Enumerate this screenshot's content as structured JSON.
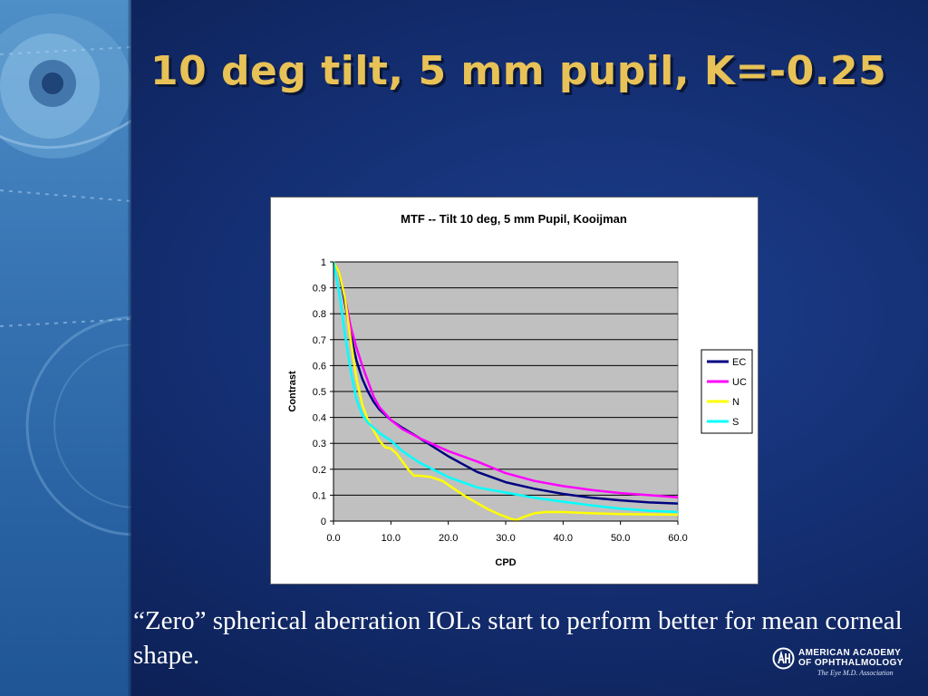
{
  "slide": {
    "title": "10 deg tilt, 5 mm pupil, K=-0.25",
    "caption": "“Zero” spherical aberration IOLs start to perform better for mean corneal shape.",
    "logo": {
      "line1": "AMERICAN ACADEMY",
      "line2": "OF OPHTHALMOLOGY",
      "tagline": "The Eye M.D. Association"
    },
    "colors": {
      "title": "#e8c257",
      "background": "#142f73",
      "side_strip": "#3a77b6"
    }
  },
  "chart_data": {
    "type": "line",
    "title": "MTF -- Tilt 10 deg, 5 mm Pupil, Kooijman",
    "xlabel": "CPD",
    "ylabel": "Contrast",
    "xlim": [
      0,
      60
    ],
    "ylim": [
      0,
      1
    ],
    "x_ticks": [
      "0.0",
      "10.0",
      "20.0",
      "30.0",
      "40.0",
      "50.0",
      "60.0"
    ],
    "y_ticks": [
      "0",
      "0.1",
      "0.2",
      "0.3",
      "0.4",
      "0.5",
      "0.6",
      "0.7",
      "0.8",
      "0.9",
      "1"
    ],
    "grid": "horizontal",
    "plot_background": "#c0c0c0",
    "legend_position": "right",
    "series": [
      {
        "name": "EC",
        "color": "#000080",
        "points": [
          [
            0,
            1
          ],
          [
            1,
            0.96
          ],
          [
            2,
            0.84
          ],
          [
            3,
            0.72
          ],
          [
            4,
            0.62
          ],
          [
            5,
            0.55
          ],
          [
            6,
            0.5
          ],
          [
            7,
            0.46
          ],
          [
            8,
            0.43
          ],
          [
            10,
            0.39
          ],
          [
            12,
            0.36
          ],
          [
            15,
            0.32
          ],
          [
            20,
            0.25
          ],
          [
            25,
            0.19
          ],
          [
            30,
            0.15
          ],
          [
            35,
            0.125
          ],
          [
            40,
            0.105
          ],
          [
            45,
            0.09
          ],
          [
            50,
            0.08
          ],
          [
            55,
            0.072
          ],
          [
            60,
            0.068
          ]
        ]
      },
      {
        "name": "UC",
        "color": "#ff00ff",
        "points": [
          [
            0,
            1
          ],
          [
            1,
            0.96
          ],
          [
            2,
            0.86
          ],
          [
            3,
            0.75
          ],
          [
            4,
            0.67
          ],
          [
            5,
            0.6
          ],
          [
            6,
            0.54
          ],
          [
            7,
            0.48
          ],
          [
            8,
            0.44
          ],
          [
            10,
            0.39
          ],
          [
            12,
            0.355
          ],
          [
            15,
            0.32
          ],
          [
            20,
            0.27
          ],
          [
            25,
            0.23
          ],
          [
            30,
            0.185
          ],
          [
            35,
            0.155
          ],
          [
            40,
            0.135
          ],
          [
            45,
            0.12
          ],
          [
            50,
            0.108
          ],
          [
            55,
            0.1
          ],
          [
            60,
            0.092
          ]
        ]
      },
      {
        "name": "N",
        "color": "#ffff00",
        "points": [
          [
            0,
            1
          ],
          [
            1,
            0.96
          ],
          [
            2,
            0.86
          ],
          [
            3,
            0.7
          ],
          [
            4,
            0.55
          ],
          [
            5,
            0.45
          ],
          [
            6,
            0.39
          ],
          [
            7,
            0.35
          ],
          [
            8,
            0.31
          ],
          [
            9,
            0.285
          ],
          [
            10,
            0.28
          ],
          [
            11,
            0.26
          ],
          [
            12,
            0.23
          ],
          [
            13,
            0.2
          ],
          [
            14,
            0.175
          ],
          [
            15,
            0.175
          ],
          [
            17,
            0.17
          ],
          [
            19,
            0.155
          ],
          [
            21,
            0.125
          ],
          [
            23,
            0.095
          ],
          [
            25,
            0.07
          ],
          [
            27,
            0.045
          ],
          [
            29,
            0.025
          ],
          [
            31,
            0.008
          ],
          [
            32,
            0.005
          ],
          [
            33,
            0.015
          ],
          [
            35,
            0.03
          ],
          [
            37,
            0.035
          ],
          [
            40,
            0.035
          ],
          [
            45,
            0.03
          ],
          [
            50,
            0.027
          ],
          [
            55,
            0.026
          ],
          [
            60,
            0.025
          ]
        ]
      },
      {
        "name": "S",
        "color": "#00ffff",
        "points": [
          [
            0,
            1
          ],
          [
            1,
            0.88
          ],
          [
            2,
            0.72
          ],
          [
            3,
            0.58
          ],
          [
            4,
            0.47
          ],
          [
            5,
            0.41
          ],
          [
            6,
            0.38
          ],
          [
            7,
            0.36
          ],
          [
            8,
            0.34
          ],
          [
            10,
            0.31
          ],
          [
            12,
            0.27
          ],
          [
            15,
            0.225
          ],
          [
            20,
            0.17
          ],
          [
            25,
            0.13
          ],
          [
            30,
            0.11
          ],
          [
            35,
            0.09
          ],
          [
            40,
            0.075
          ],
          [
            45,
            0.06
          ],
          [
            50,
            0.048
          ],
          [
            55,
            0.04
          ],
          [
            60,
            0.035
          ]
        ]
      }
    ]
  }
}
